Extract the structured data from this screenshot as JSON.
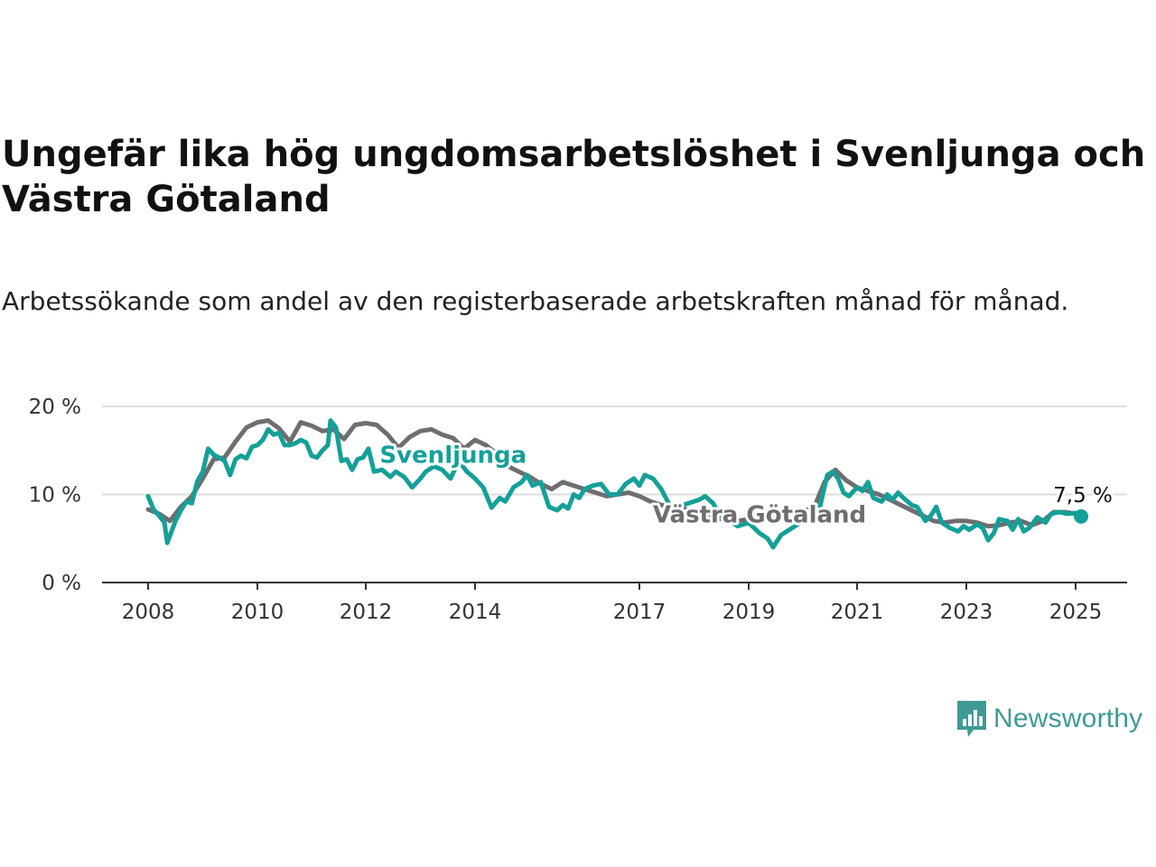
{
  "title": "Ungefär lika hög ungdomsarbetslöshet i Svenljunga och Västra Götaland",
  "subtitle": "Arbetssökande som andel av den registerbaserade arbetskraften månad för månad.",
  "brand": {
    "name": "Newsworthy",
    "icon": "newsworthy-logo-icon",
    "color": "#3e9a95"
  },
  "chart_data": {
    "type": "line",
    "title": "Ungefär lika hög ungdomsarbetslöshet i Svenljunga och Västra Götaland",
    "subtitle": "Arbetssökande som andel av den registerbaserade arbetskraften månad för månad.",
    "xlabel": "",
    "ylabel": "",
    "xlim": [
      2007.8,
      2025.95
    ],
    "ylim": [
      0,
      20
    ],
    "yticks": [
      0,
      10,
      20
    ],
    "ytick_labels": [
      "0 %",
      "10 %",
      "20 %"
    ],
    "xticks": [
      2008,
      2010,
      2012,
      2014,
      2017,
      2019,
      2021,
      2023,
      2025
    ],
    "xtick_labels": [
      "2008",
      "2010",
      "2012",
      "2014",
      "2017",
      "2019",
      "2021",
      "2023",
      "2025"
    ],
    "grid": "horizontal",
    "legend": "none",
    "end_label": "7,5 %",
    "series": [
      {
        "name": "Västra Götaland",
        "color": "#6f6d70",
        "points": [
          [
            2008.0,
            8.3
          ],
          [
            2008.2,
            7.8
          ],
          [
            2008.4,
            7.0
          ],
          [
            2008.6,
            8.6
          ],
          [
            2008.8,
            9.8
          ],
          [
            2009.0,
            11.8
          ],
          [
            2009.2,
            14.0
          ],
          [
            2009.4,
            14.2
          ],
          [
            2009.6,
            16.0
          ],
          [
            2009.8,
            17.6
          ],
          [
            2010.0,
            18.2
          ],
          [
            2010.2,
            18.4
          ],
          [
            2010.4,
            17.5
          ],
          [
            2010.6,
            16.0
          ],
          [
            2010.8,
            18.2
          ],
          [
            2011.0,
            17.8
          ],
          [
            2011.2,
            17.2
          ],
          [
            2011.4,
            17.4
          ],
          [
            2011.6,
            16.3
          ],
          [
            2011.8,
            17.9
          ],
          [
            2012.0,
            18.1
          ],
          [
            2012.2,
            17.9
          ],
          [
            2012.4,
            16.8
          ],
          [
            2012.6,
            15.3
          ],
          [
            2012.8,
            16.5
          ],
          [
            2013.0,
            17.2
          ],
          [
            2013.2,
            17.4
          ],
          [
            2013.4,
            16.8
          ],
          [
            2013.6,
            16.4
          ],
          [
            2013.8,
            15.2
          ],
          [
            2014.0,
            16.2
          ],
          [
            2014.2,
            15.6
          ],
          [
            2014.4,
            14.6
          ],
          [
            2014.6,
            13.2
          ],
          [
            2014.8,
            12.6
          ],
          [
            2015.0,
            12.0
          ],
          [
            2015.2,
            11.2
          ],
          [
            2015.4,
            10.6
          ],
          [
            2015.6,
            11.4
          ],
          [
            2015.8,
            11.0
          ],
          [
            2016.0,
            10.6
          ],
          [
            2016.2,
            10.2
          ],
          [
            2016.4,
            9.8
          ],
          [
            2016.6,
            10.0
          ],
          [
            2016.8,
            10.2
          ],
          [
            2017.0,
            9.8
          ],
          [
            2017.2,
            9.2
          ],
          [
            2017.4,
            8.8
          ],
          [
            2017.6,
            8.6
          ],
          [
            2017.8,
            8.4
          ],
          [
            2018.0,
            8.0
          ],
          [
            2018.2,
            7.6
          ],
          [
            2018.4,
            7.3
          ],
          [
            2018.6,
            7.1
          ],
          [
            2018.8,
            7.0
          ],
          [
            2019.0,
            7.2
          ],
          [
            2019.2,
            7.5
          ],
          [
            2019.4,
            7.6
          ],
          [
            2019.6,
            7.8
          ],
          [
            2019.8,
            8.0
          ],
          [
            2020.0,
            8.2
          ],
          [
            2020.2,
            8.4
          ],
          [
            2020.4,
            11.4
          ],
          [
            2020.6,
            12.8
          ],
          [
            2020.8,
            11.6
          ],
          [
            2021.0,
            10.8
          ],
          [
            2021.2,
            10.4
          ],
          [
            2021.4,
            10.0
          ],
          [
            2021.6,
            9.4
          ],
          [
            2021.8,
            8.8
          ],
          [
            2022.0,
            8.2
          ],
          [
            2022.2,
            7.6
          ],
          [
            2022.4,
            7.0
          ],
          [
            2022.6,
            6.8
          ],
          [
            2022.8,
            7.0
          ],
          [
            2023.0,
            7.0
          ],
          [
            2023.2,
            6.8
          ],
          [
            2023.4,
            6.4
          ],
          [
            2023.6,
            6.5
          ],
          [
            2023.8,
            6.8
          ],
          [
            2024.0,
            7.0
          ],
          [
            2024.2,
            6.5
          ],
          [
            2024.4,
            7.0
          ],
          [
            2024.6,
            8.0
          ],
          [
            2024.8,
            8.0
          ],
          [
            2025.0,
            7.8
          ],
          [
            2025.1,
            7.7
          ]
        ]
      },
      {
        "name": "Svenljunga",
        "color": "#14a098",
        "points": [
          [
            2008.0,
            9.8
          ],
          [
            2008.1,
            8.3
          ],
          [
            2008.2,
            7.6
          ],
          [
            2008.3,
            6.8
          ],
          [
            2008.35,
            4.5
          ],
          [
            2008.5,
            7.0
          ],
          [
            2008.6,
            8.2
          ],
          [
            2008.7,
            9.2
          ],
          [
            2008.8,
            9.0
          ],
          [
            2008.9,
            11.5
          ],
          [
            2009.0,
            12.6
          ],
          [
            2009.1,
            15.2
          ],
          [
            2009.2,
            14.5
          ],
          [
            2009.3,
            14.2
          ],
          [
            2009.4,
            13.8
          ],
          [
            2009.5,
            12.2
          ],
          [
            2009.6,
            14.0
          ],
          [
            2009.7,
            14.4
          ],
          [
            2009.8,
            14.1
          ],
          [
            2009.9,
            15.4
          ],
          [
            2010.0,
            15.6
          ],
          [
            2010.1,
            16.2
          ],
          [
            2010.2,
            17.4
          ],
          [
            2010.3,
            16.8
          ],
          [
            2010.4,
            17.0
          ],
          [
            2010.5,
            15.6
          ],
          [
            2010.6,
            15.6
          ],
          [
            2010.7,
            15.8
          ],
          [
            2010.8,
            16.2
          ],
          [
            2010.9,
            15.9
          ],
          [
            2011.0,
            14.4
          ],
          [
            2011.1,
            14.2
          ],
          [
            2011.2,
            15.0
          ],
          [
            2011.3,
            15.6
          ],
          [
            2011.35,
            18.4
          ],
          [
            2011.45,
            17.6
          ],
          [
            2011.55,
            13.8
          ],
          [
            2011.65,
            14.0
          ],
          [
            2011.75,
            12.8
          ],
          [
            2011.85,
            14.0
          ],
          [
            2011.95,
            14.2
          ],
          [
            2012.05,
            15.2
          ],
          [
            2012.15,
            12.6
          ],
          [
            2012.3,
            12.8
          ],
          [
            2012.45,
            12.0
          ],
          [
            2012.55,
            12.6
          ],
          [
            2012.7,
            12.0
          ],
          [
            2012.85,
            10.8
          ],
          [
            2013.0,
            11.8
          ],
          [
            2013.1,
            12.6
          ],
          [
            2013.25,
            13.2
          ],
          [
            2013.4,
            12.8
          ],
          [
            2013.55,
            11.8
          ],
          [
            2013.7,
            13.8
          ],
          [
            2013.85,
            12.6
          ],
          [
            2014.0,
            11.8
          ],
          [
            2014.15,
            10.8
          ],
          [
            2014.3,
            8.5
          ],
          [
            2014.45,
            9.6
          ],
          [
            2014.55,
            9.2
          ],
          [
            2014.7,
            10.8
          ],
          [
            2014.85,
            11.4
          ],
          [
            2014.95,
            12.2
          ],
          [
            2015.05,
            11.0
          ],
          [
            2015.2,
            11.4
          ],
          [
            2015.35,
            8.6
          ],
          [
            2015.5,
            8.2
          ],
          [
            2015.6,
            8.8
          ],
          [
            2015.7,
            8.4
          ],
          [
            2015.8,
            10.0
          ],
          [
            2015.9,
            9.6
          ],
          [
            2016.0,
            10.6
          ],
          [
            2016.15,
            11.0
          ],
          [
            2016.3,
            11.2
          ],
          [
            2016.45,
            10.0
          ],
          [
            2016.6,
            10.0
          ],
          [
            2016.75,
            11.2
          ],
          [
            2016.9,
            11.8
          ],
          [
            2017.0,
            11.0
          ],
          [
            2017.1,
            12.2
          ],
          [
            2017.25,
            11.8
          ],
          [
            2017.4,
            10.6
          ],
          [
            2017.55,
            8.8
          ],
          [
            2017.7,
            8.6
          ],
          [
            2017.85,
            8.9
          ],
          [
            2018.0,
            9.2
          ],
          [
            2018.1,
            9.4
          ],
          [
            2018.2,
            9.8
          ],
          [
            2018.35,
            9.0
          ],
          [
            2018.45,
            7.8
          ],
          [
            2018.6,
            7.2
          ],
          [
            2018.8,
            6.4
          ],
          [
            2019.0,
            6.8
          ],
          [
            2019.2,
            5.6
          ],
          [
            2019.35,
            5.0
          ],
          [
            2019.45,
            4.0
          ],
          [
            2019.6,
            5.4
          ],
          [
            2019.8,
            6.2
          ],
          [
            2020.0,
            7.0
          ],
          [
            2020.15,
            7.8
          ],
          [
            2020.3,
            8.2
          ],
          [
            2020.45,
            12.2
          ],
          [
            2020.55,
            12.6
          ],
          [
            2020.65,
            11.8
          ],
          [
            2020.75,
            10.2
          ],
          [
            2020.85,
            9.8
          ],
          [
            2021.0,
            10.8
          ],
          [
            2021.1,
            10.4
          ],
          [
            2021.2,
            11.4
          ],
          [
            2021.3,
            9.6
          ],
          [
            2021.45,
            9.2
          ],
          [
            2021.55,
            10.0
          ],
          [
            2021.65,
            9.4
          ],
          [
            2021.75,
            10.2
          ],
          [
            2021.85,
            9.6
          ],
          [
            2022.0,
            8.8
          ],
          [
            2022.1,
            8.6
          ],
          [
            2022.25,
            7.0
          ],
          [
            2022.35,
            7.6
          ],
          [
            2022.45,
            8.6
          ],
          [
            2022.55,
            6.8
          ],
          [
            2022.7,
            6.2
          ],
          [
            2022.85,
            5.8
          ],
          [
            2022.95,
            6.4
          ],
          [
            2023.05,
            6.0
          ],
          [
            2023.2,
            6.6
          ],
          [
            2023.3,
            6.2
          ],
          [
            2023.4,
            4.8
          ],
          [
            2023.5,
            5.6
          ],
          [
            2023.6,
            7.2
          ],
          [
            2023.75,
            7.0
          ],
          [
            2023.85,
            6.0
          ],
          [
            2023.95,
            7.2
          ],
          [
            2024.05,
            5.8
          ],
          [
            2024.15,
            6.2
          ],
          [
            2024.3,
            7.4
          ],
          [
            2024.45,
            6.8
          ],
          [
            2024.55,
            7.8
          ],
          [
            2024.7,
            8.0
          ],
          [
            2024.85,
            7.8
          ],
          [
            2025.0,
            7.9
          ],
          [
            2025.1,
            7.5
          ]
        ]
      }
    ],
    "annotations": [
      {
        "text": "Svenljunga",
        "x": 2013.6,
        "y": 13.6,
        "color": "#14a098"
      },
      {
        "text": "Västra Götaland",
        "x": 2019.2,
        "y": 6.8,
        "color": "#6f6d70"
      },
      {
        "text": "7,5 %",
        "x": 2025.1,
        "y": 7.5,
        "color": "#111111"
      }
    ]
  }
}
